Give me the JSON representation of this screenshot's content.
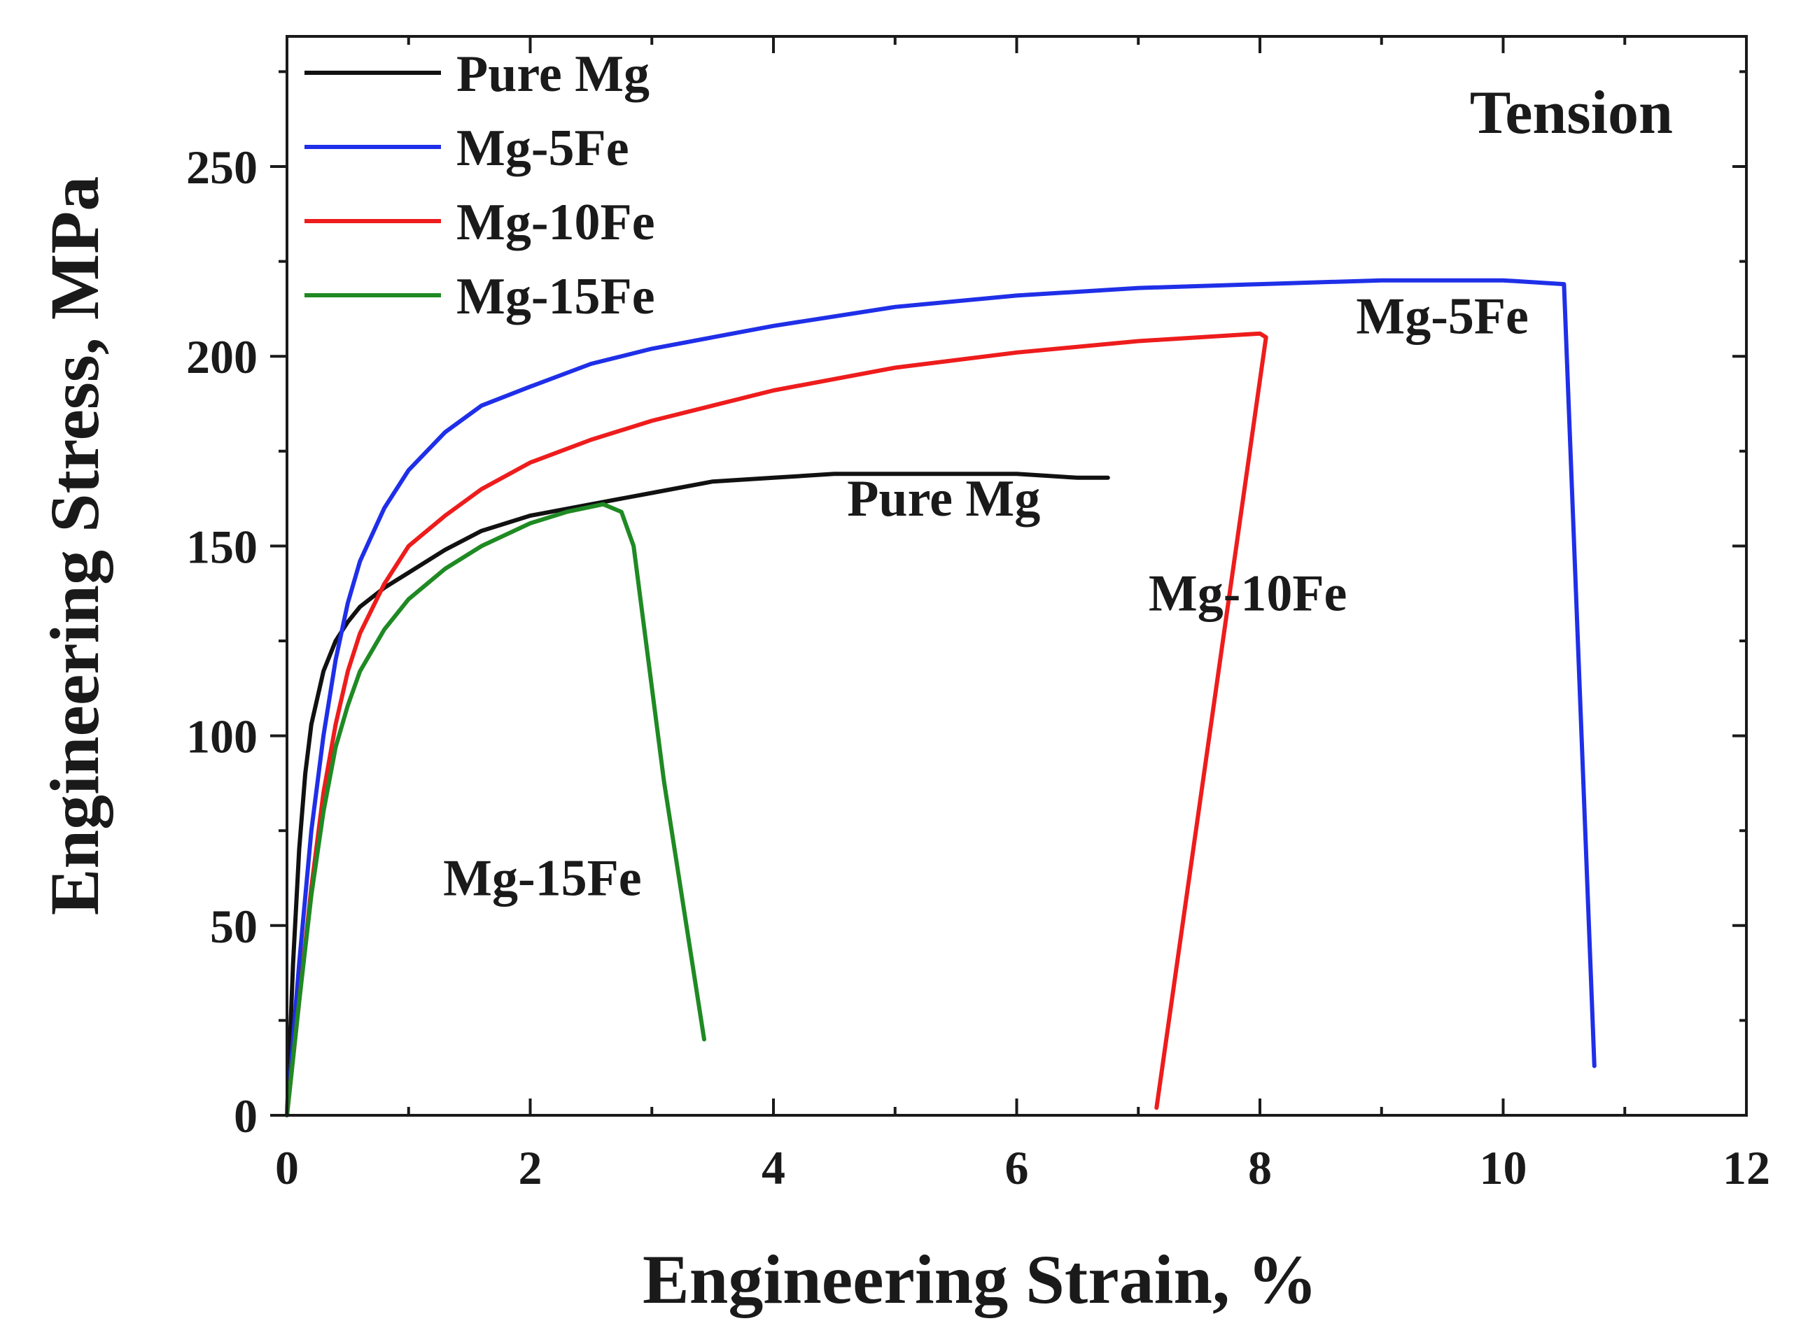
{
  "chart_data": {
    "type": "line",
    "title": "Tension",
    "xlabel": "Engineering Strain, %",
    "ylabel": "Engineering Stress, MPa",
    "xlim": [
      0,
      12
    ],
    "ylim": [
      0,
      280
    ],
    "xticks": [
      0,
      2,
      4,
      6,
      8,
      10,
      12
    ],
    "xtick_labels": [
      "0",
      "2",
      "4",
      "6",
      "8",
      "10",
      "12"
    ],
    "yticks": [
      0,
      50,
      100,
      150,
      200,
      250
    ],
    "ytick_labels": [
      "0",
      "50",
      "100",
      "150",
      "200",
      "250"
    ],
    "legend_position": "top-left",
    "series": [
      {
        "name": "Pure Mg",
        "color": "#111111",
        "x": [
          0,
          0.05,
          0.1,
          0.15,
          0.2,
          0.3,
          0.4,
          0.5,
          0.6,
          0.8,
          1.0,
          1.3,
          1.6,
          2.0,
          2.5,
          3.0,
          3.5,
          4.0,
          4.5,
          5.0,
          5.5,
          6.0,
          6.5,
          6.75
        ],
        "y": [
          0,
          40,
          70,
          90,
          103,
          117,
          125,
          130,
          134,
          139,
          143,
          149,
          154,
          158,
          161,
          164,
          167,
          168,
          169,
          169,
          169,
          169,
          168,
          168
        ]
      },
      {
        "name": "Mg-5Fe",
        "color": "#1f2fe8",
        "x": [
          0,
          0.1,
          0.2,
          0.3,
          0.4,
          0.5,
          0.6,
          0.8,
          1.0,
          1.3,
          1.6,
          2.0,
          2.5,
          3.0,
          3.5,
          4.0,
          5.0,
          6.0,
          7.0,
          8.0,
          9.0,
          10.0,
          10.5,
          10.75
        ],
        "y": [
          0,
          40,
          75,
          100,
          120,
          135,
          146,
          160,
          170,
          180,
          187,
          192,
          198,
          202,
          205,
          208,
          213,
          216,
          218,
          219,
          220,
          220,
          219,
          13
        ]
      },
      {
        "name": "Mg-10Fe",
        "color": "#ee1c1c",
        "x": [
          0,
          0.1,
          0.2,
          0.3,
          0.4,
          0.5,
          0.6,
          0.8,
          1.0,
          1.3,
          1.6,
          2.0,
          2.5,
          3.0,
          3.5,
          4.0,
          5.0,
          6.0,
          7.0,
          7.5,
          8.0,
          8.05,
          7.15
        ],
        "y": [
          0,
          30,
          60,
          85,
          103,
          117,
          127,
          140,
          150,
          158,
          165,
          172,
          178,
          183,
          187,
          191,
          197,
          201,
          204,
          205,
          206,
          205,
          2
        ]
      },
      {
        "name": "Mg-15Fe",
        "color": "#1f8a23",
        "x": [
          0,
          0.1,
          0.2,
          0.3,
          0.4,
          0.5,
          0.6,
          0.8,
          1.0,
          1.3,
          1.6,
          2.0,
          2.3,
          2.6,
          2.75,
          2.85,
          3.1,
          3.43
        ],
        "y": [
          0,
          30,
          58,
          80,
          97,
          108,
          117,
          128,
          136,
          144,
          150,
          156,
          159,
          161,
          159,
          150,
          88,
          20
        ]
      }
    ],
    "annotations": [
      {
        "text": "Pure Mg",
        "series": "Pure Mg",
        "x": 5.4,
        "y": 158
      },
      {
        "text": "Mg-5Fe",
        "series": "Mg-5Fe",
        "x": 9.5,
        "y": 206
      },
      {
        "text": "Mg-10Fe",
        "series": "Mg-10Fe",
        "x": 7.9,
        "y": 133
      },
      {
        "text": "Mg-15Fe",
        "series": "Mg-15Fe",
        "x": 2.1,
        "y": 58
      }
    ]
  }
}
